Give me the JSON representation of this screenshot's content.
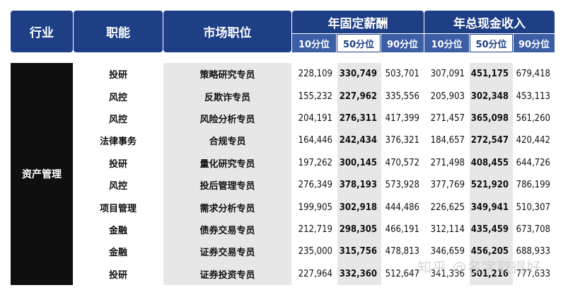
{
  "header": {
    "industry": "行业",
    "function": "职能",
    "position": "市场职位",
    "fixed_salary": "年固定薪酬",
    "total_cash": "年总现金收入",
    "p10": "10分位",
    "p50": "50分位",
    "p90": "90分位"
  },
  "industry_value": "资产管理",
  "rows": [
    {
      "func": "投研",
      "pos": "策略研究专员",
      "a10": "228,109",
      "a50": "330,749",
      "a90": "503,701",
      "b10": "307,091",
      "b50": "451,175",
      "b90": "679,418"
    },
    {
      "func": "风控",
      "pos": "反欺诈专员",
      "a10": "155,232",
      "a50": "227,962",
      "a90": "335,556",
      "b10": "205,903",
      "b50": "302,348",
      "b90": "453,113"
    },
    {
      "func": "风控",
      "pos": "风险分析专员",
      "a10": "204,191",
      "a50": "276,311",
      "a90": "417,399",
      "b10": "271,457",
      "b50": "365,098",
      "b90": "561,260"
    },
    {
      "func": "法律事务",
      "pos": "合规专员",
      "a10": "164,446",
      "a50": "242,434",
      "a90": "376,321",
      "b10": "184,657",
      "b50": "272,547",
      "b90": "420,442"
    },
    {
      "func": "投研",
      "pos": "量化研究专员",
      "a10": "197,262",
      "a50": "300,145",
      "a90": "470,572",
      "b10": "271,498",
      "b50": "408,455",
      "b90": "644,726"
    },
    {
      "func": "风控",
      "pos": "投后管理专员",
      "a10": "276,349",
      "a50": "378,193",
      "a90": "573,928",
      "b10": "377,769",
      "b50": "521,920",
      "b90": "786,199"
    },
    {
      "func": "项目管理",
      "pos": "需求分析专员",
      "a10": "199,905",
      "a50": "302,918",
      "a90": "444,486",
      "b10": "226,625",
      "b50": "349,941",
      "b90": "510,307"
    },
    {
      "func": "金融",
      "pos": "债券交易专员",
      "a10": "212,719",
      "a50": "298,305",
      "a90": "466,191",
      "b10": "312,114",
      "b50": "435,459",
      "b90": "673,708"
    },
    {
      "func": "金融",
      "pos": "证券交易专员",
      "a10": "235,000",
      "a50": "315,756",
      "a90": "478,813",
      "b10": "346,659",
      "b50": "456,205",
      "b90": "688,933"
    },
    {
      "func": "投研",
      "pos": "证券投资专员",
      "a10": "227,964",
      "a50": "332,360",
      "a90": "512,647",
      "b10": "341,336",
      "b50": "501,216",
      "b90": "777,633"
    }
  ],
  "watermark": "知乎 @名字取得好"
}
